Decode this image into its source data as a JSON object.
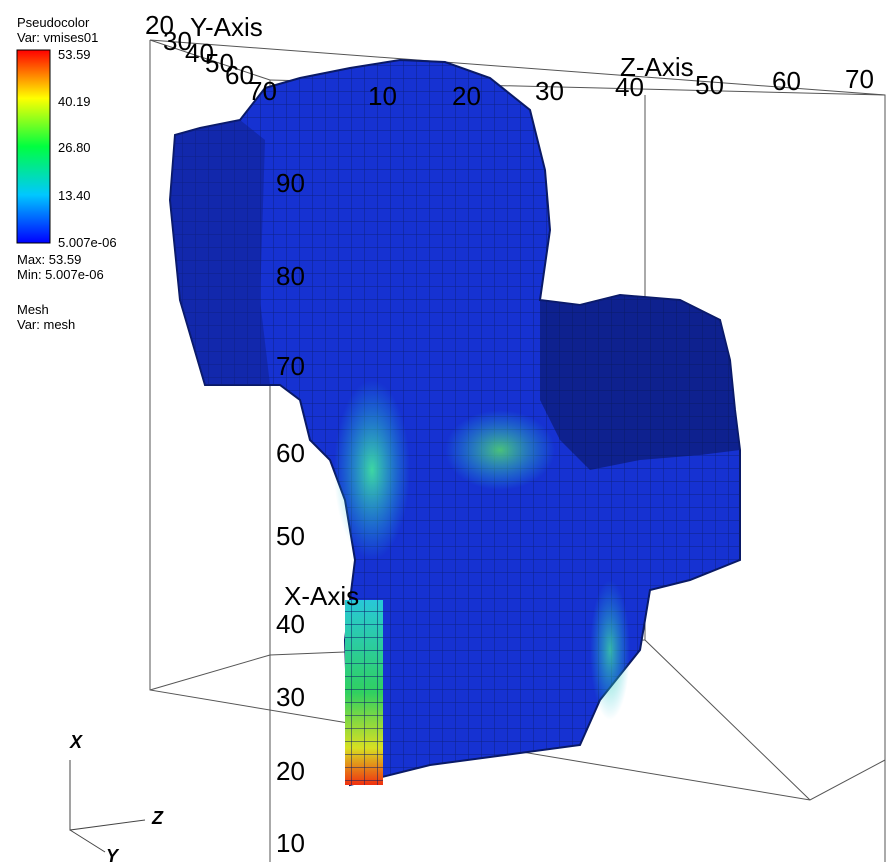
{
  "legend": {
    "plot_name": "Pseudocolor",
    "var_label": "Var: vmises01",
    "ticks": [
      "53.59",
      "40.19",
      "26.80",
      "13.40",
      "5.007e-06"
    ],
    "max_label": "Max:  53.59",
    "min_label": "Min:  5.007e-06",
    "mesh_name": "Mesh",
    "mesh_var": "Var: mesh",
    "colors": [
      "#0000ff",
      "#00c8ff",
      "#00ff40",
      "#ffff00",
      "#ff0000"
    ]
  },
  "axes": {
    "x_title": "X-Axis",
    "y_title": "Y-Axis",
    "z_title": "Z-Axis",
    "x_ticks": [
      "10",
      "20",
      "30",
      "40",
      "50",
      "60",
      "70",
      "80",
      "90"
    ],
    "y_ticks": [
      "20",
      "30",
      "40",
      "50",
      "60",
      "70"
    ],
    "z_ticks": [
      "10",
      "20",
      "30",
      "40",
      "50",
      "60",
      "70"
    ]
  },
  "triad": {
    "x": "X",
    "y": "Y",
    "z": "Z"
  },
  "mesh_colors": {
    "base": "#1632d2",
    "edge": "#0a1a66",
    "dark": "#0c1c78",
    "cyan": "#27d6c8",
    "green": "#32d060",
    "yellow": "#e6e622",
    "red": "#f03010",
    "orange": "#f07018"
  }
}
